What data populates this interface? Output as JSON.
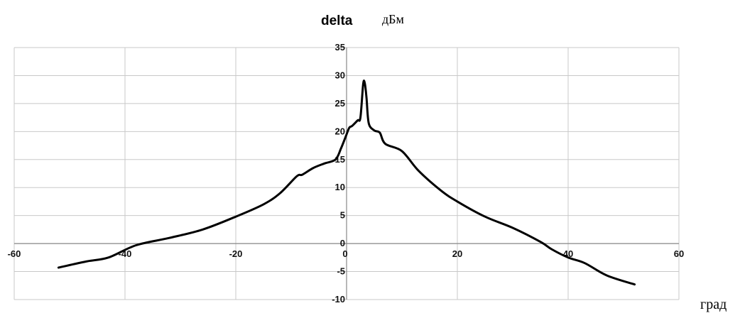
{
  "chart_data": {
    "type": "line",
    "title": "delta",
    "title_unit": "дБм",
    "xlabel": "град",
    "ylabel": "",
    "xlim": [
      -60,
      60
    ],
    "ylim": [
      -10,
      35
    ],
    "x_ticks": [
      -60,
      -40,
      -20,
      0,
      20,
      40,
      60
    ],
    "y_ticks": [
      35,
      30,
      25,
      20,
      15,
      10,
      5,
      0,
      -5,
      -10
    ],
    "x_tick_labels": [
      "-60",
      "-40",
      "-20",
      "0",
      "20",
      "40",
      "60"
    ],
    "y_tick_labels": [
      "35",
      "30",
      "25",
      "20",
      "15",
      "10",
      "5",
      "0",
      "-5",
      "-10"
    ],
    "grid": true,
    "series": [
      {
        "color": "#000000",
        "x": [
          -52,
          -47,
          -43,
          -38,
          -32,
          -26,
          -20,
          -15,
          -12,
          -9,
          -8,
          -6,
          -4,
          -2,
          -1,
          0,
          0.5,
          1,
          2,
          2.5,
          3,
          3.3,
          3.6,
          4,
          5,
          6,
          7,
          10,
          13,
          17,
          20,
          25,
          30,
          35,
          37,
          40,
          43,
          47,
          52
        ],
        "y": [
          -4.3,
          -3.2,
          -2.5,
          -0.3,
          1.0,
          2.5,
          4.8,
          7.0,
          9.0,
          12.0,
          12.3,
          13.5,
          14.3,
          15.0,
          17.0,
          19.5,
          20.7,
          21.0,
          22.0,
          22.5,
          28.5,
          28.6,
          26.0,
          21.5,
          20.2,
          19.8,
          17.8,
          16.5,
          13.0,
          9.5,
          7.5,
          4.8,
          2.8,
          0.3,
          -1.0,
          -2.5,
          -3.5,
          -5.7,
          -7.3
        ]
      }
    ]
  }
}
